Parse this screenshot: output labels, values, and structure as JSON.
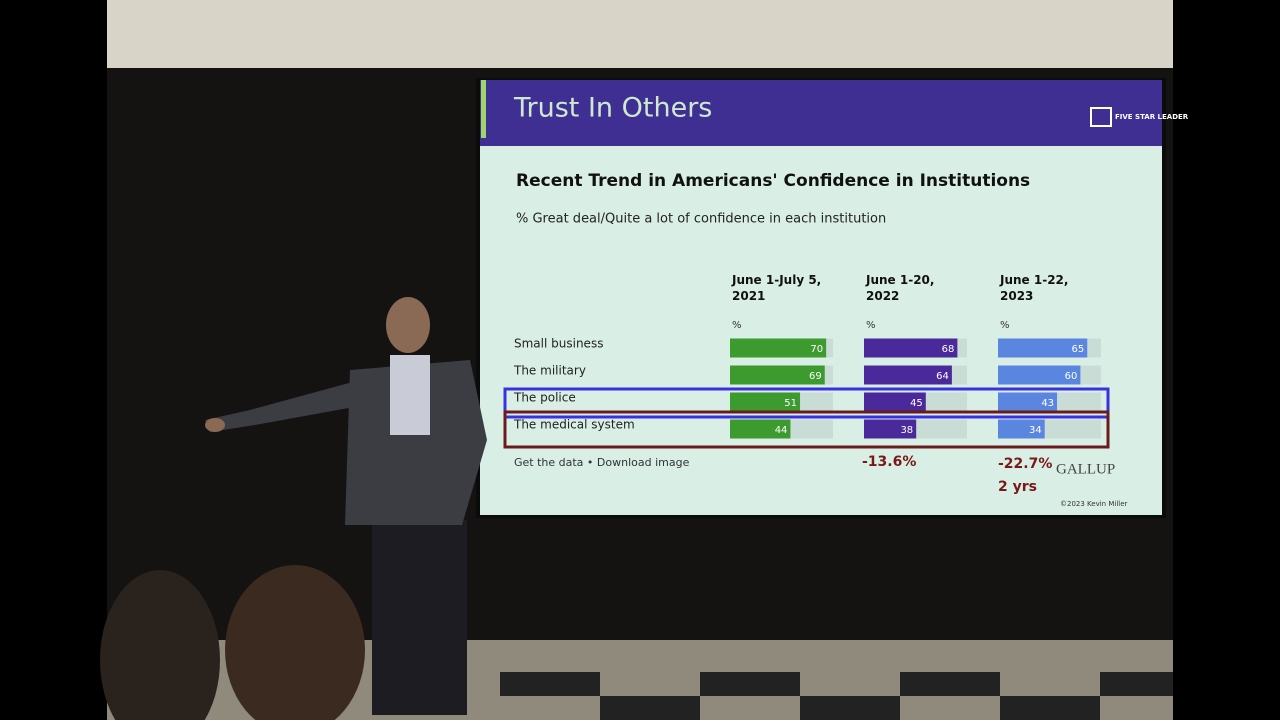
{
  "slide": {
    "title": "Trust In Others",
    "logo": "FIVE STAR LEADER",
    "footer": "Get the data • Download image",
    "source": "GALLUP",
    "copyright": "©2023 Kevin Miller"
  },
  "chart_data": {
    "type": "bar",
    "title": "Recent Trend in Americans' Confidence in Institutions",
    "subtitle": "% Great deal/Quite a lot of confidence in each institution",
    "unit": "%",
    "categories": [
      "Small business",
      "The military",
      "The police",
      "The medical system"
    ],
    "series": [
      {
        "name": "June 1-July 5, 2021",
        "color": "#3d9a2e",
        "values": [
          70,
          69,
          51,
          44
        ]
      },
      {
        "name": "June 1-20, 2022",
        "color": "#4a2a9a",
        "values": [
          68,
          64,
          45,
          38
        ]
      },
      {
        "name": "June 1-22, 2023",
        "color": "#5b86e0",
        "values": [
          65,
          60,
          43,
          34
        ]
      }
    ],
    "xlim": [
      0,
      75
    ],
    "annotations": [
      "-13.6%",
      "-22.7%",
      "2 yrs"
    ]
  }
}
